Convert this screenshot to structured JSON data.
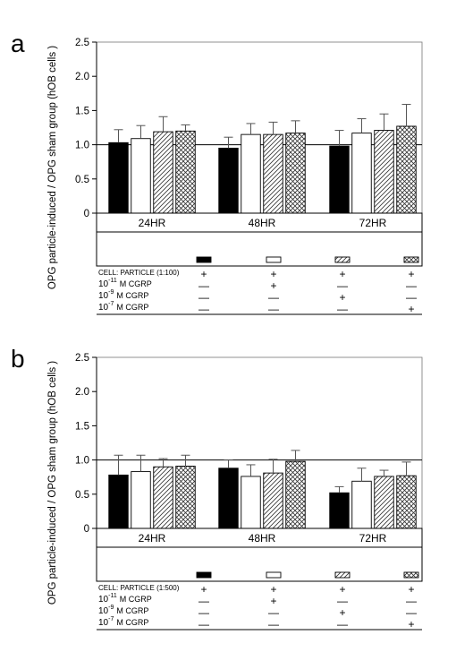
{
  "ylabel": "OPG particle-induced / OPG sham group  (hOB cells )",
  "legend_rows": [
    "CELL: PARTICLE",
    "10",
    "10",
    "10"
  ],
  "chart_data": [
    {
      "type": "bar",
      "panel_label": "a",
      "ylabel": "OPG particle-induced / OPG sham group  (hOB cells )",
      "ylim": [
        0,
        2.5
      ],
      "yticks": [
        "0",
        "0.5",
        "1.0",
        "1.5",
        "2.0",
        "2.5"
      ],
      "reference_line": 1.0,
      "categories": [
        "24HR",
        "48HR",
        "72HR"
      ],
      "series": [
        {
          "key": "s1",
          "values": [
            1.03,
            0.95,
            0.98
          ],
          "errors": [
            0.19,
            0.16,
            0.23
          ]
        },
        {
          "key": "s2",
          "values": [
            1.09,
            1.15,
            1.17
          ],
          "errors": [
            0.19,
            0.16,
            0.21
          ]
        },
        {
          "key": "s3",
          "values": [
            1.19,
            1.15,
            1.21
          ],
          "errors": [
            0.22,
            0.18,
            0.24
          ]
        },
        {
          "key": "s4",
          "values": [
            1.2,
            1.17,
            1.27
          ],
          "errors": [
            0.09,
            0.18,
            0.32
          ]
        }
      ],
      "particle_ratio": "(1:100)",
      "legend_marks": [
        [
          "+",
          "+",
          "+",
          "+"
        ],
        [
          "—",
          "+",
          "—",
          "—"
        ],
        [
          "—",
          "—",
          "+",
          "—"
        ],
        [
          "—",
          "—",
          "—",
          "+"
        ]
      ]
    },
    {
      "type": "bar",
      "panel_label": "b",
      "ylabel": "OPG particle-induced / OPG sham group  (hOB cells )",
      "ylim": [
        0,
        2.5
      ],
      "yticks": [
        "0",
        "0.5",
        "1.0",
        "1.5",
        "2.0",
        "2.5"
      ],
      "reference_line": 1.0,
      "categories": [
        "24HR",
        "48HR",
        "72HR"
      ],
      "series": [
        {
          "key": "s1",
          "values": [
            0.78,
            0.88,
            0.52
          ],
          "errors": [
            0.29,
            0.12,
            0.09
          ]
        },
        {
          "key": "s2",
          "values": [
            0.83,
            0.76,
            0.69
          ],
          "errors": [
            0.24,
            0.17,
            0.19
          ]
        },
        {
          "key": "s3",
          "values": [
            0.9,
            0.81,
            0.76
          ],
          "errors": [
            0.12,
            0.2,
            0.09
          ]
        },
        {
          "key": "s4",
          "values": [
            0.91,
            0.98,
            0.77
          ],
          "errors": [
            0.16,
            0.16,
            0.2
          ]
        }
      ],
      "particle_ratio": "(1:500)",
      "legend_marks": [
        [
          "+",
          "+",
          "+",
          "+"
        ],
        [
          "—",
          "+",
          "—",
          "—"
        ],
        [
          "—",
          "—",
          "+",
          "—"
        ],
        [
          "—",
          "—",
          "—",
          "+"
        ]
      ]
    }
  ],
  "exponents": [
    "-11",
    "-9",
    "-7"
  ],
  "agent": "M  CGRP"
}
